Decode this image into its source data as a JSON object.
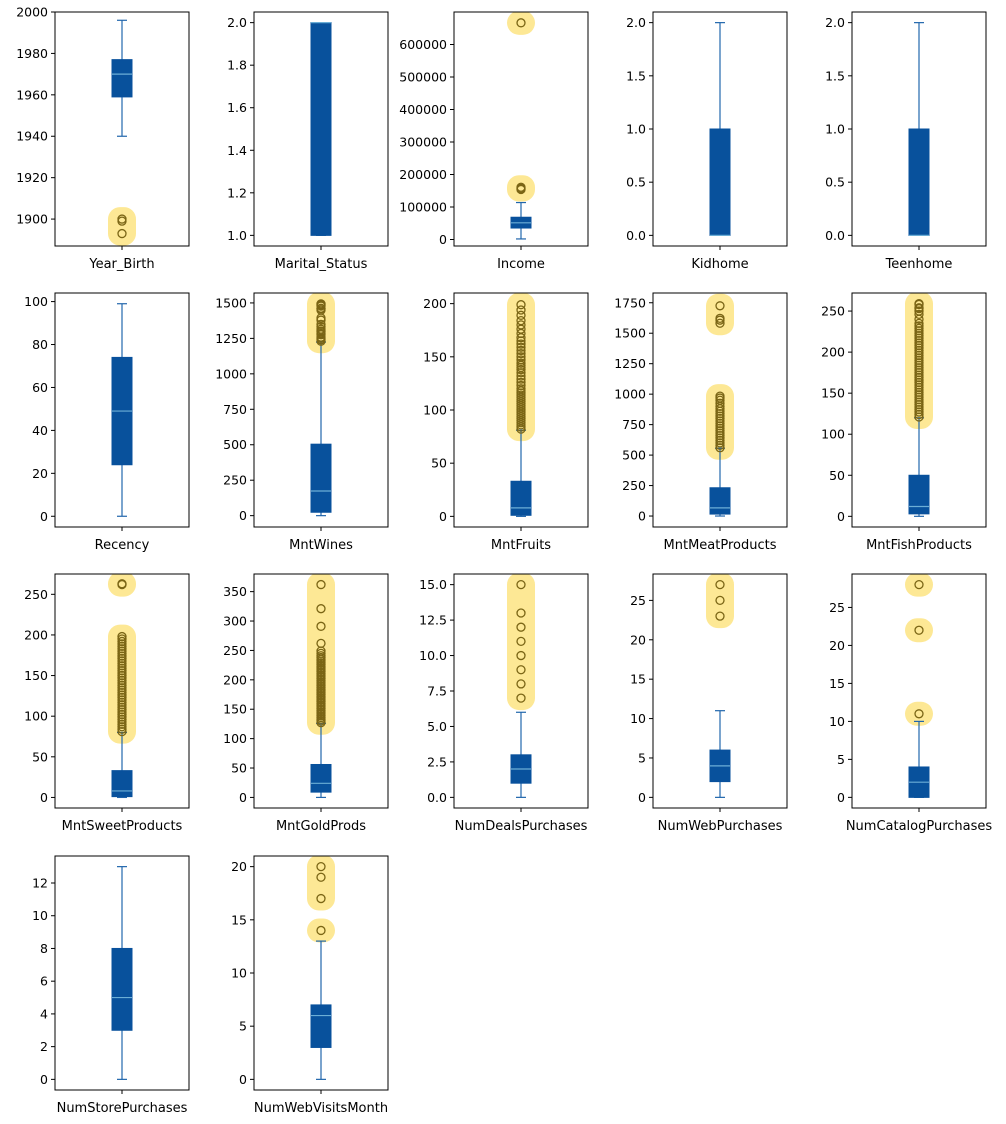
{
  "chart_data": [
    {
      "type": "box",
      "category": "Year_Birth",
      "yticks": [
        1900,
        1920,
        1940,
        1960,
        1980,
        2000
      ],
      "ylim": [
        1887,
        2000
      ],
      "box": {
        "whisker_low": 1940,
        "q1": 1959,
        "median": 1970,
        "q3": 1977,
        "whisker_high": 1996
      },
      "outliers": [
        1893,
        1899,
        1900
      ],
      "highlighted_outliers": [
        1893,
        1899,
        1900
      ]
    },
    {
      "type": "box",
      "category": "Marital_Status",
      "yticks": [
        1.0,
        1.2,
        1.4,
        1.6,
        1.8,
        2.0
      ],
      "ylim": [
        0.95,
        2.05
      ],
      "box": {
        "whisker_low": 1.0,
        "q1": 1.0,
        "median": 2.0,
        "q3": 2.0,
        "whisker_high": 2.0
      },
      "outliers": [],
      "highlighted_outliers": []
    },
    {
      "type": "box",
      "category": "Income",
      "yticks": [
        0,
        100000,
        200000,
        300000,
        400000,
        500000,
        600000
      ],
      "ylim": [
        -20000,
        700000
      ],
      "box": {
        "whisker_low": 1730,
        "q1": 35300,
        "median": 51400,
        "q3": 68500,
        "whisker_high": 113700
      },
      "outliers": [
        153900,
        157100,
        160800,
        666666
      ],
      "highlighted_outliers": [
        153900,
        157100,
        160800,
        666666
      ]
    },
    {
      "type": "box",
      "category": "Kidhome",
      "yticks": [
        0.0,
        0.5,
        1.0,
        1.5,
        2.0
      ],
      "ylim": [
        -0.1,
        2.1
      ],
      "box": {
        "whisker_low": 0,
        "q1": 0,
        "median": 0,
        "q3": 1,
        "whisker_high": 2
      },
      "outliers": [],
      "highlighted_outliers": []
    },
    {
      "type": "box",
      "category": "Teenhome",
      "yticks": [
        0.0,
        0.5,
        1.0,
        1.5,
        2.0
      ],
      "ylim": [
        -0.1,
        2.1
      ],
      "box": {
        "whisker_low": 0,
        "q1": 0,
        "median": 0,
        "q3": 1,
        "whisker_high": 2
      },
      "outliers": [],
      "highlighted_outliers": []
    },
    {
      "type": "box",
      "category": "Recency",
      "yticks": [
        0,
        20,
        40,
        60,
        80,
        100
      ],
      "ylim": [
        -5,
        104
      ],
      "box": {
        "whisker_low": 0,
        "q1": 24,
        "median": 49,
        "q3": 74,
        "whisker_high": 99
      },
      "outliers": [],
      "highlighted_outliers": []
    },
    {
      "type": "box",
      "category": "MntWines",
      "yticks": [
        0,
        250,
        500,
        750,
        1000,
        1250,
        1500
      ],
      "ylim": [
        -80,
        1570
      ],
      "box": {
        "whisker_low": 0,
        "q1": 24,
        "median": 174,
        "q3": 504,
        "whisker_high": 1224
      },
      "outliers": [
        1230,
        1240,
        1250,
        1259,
        1276,
        1285,
        1296,
        1302,
        1315,
        1332,
        1349,
        1379,
        1394,
        1449,
        1459,
        1462,
        1478,
        1486,
        1492,
        1493
      ],
      "highlighted_outliers": [
        1230,
        1240,
        1250,
        1259,
        1276,
        1285,
        1296,
        1302,
        1315,
        1332,
        1349,
        1379,
        1394,
        1449,
        1459,
        1462,
        1478,
        1486,
        1492,
        1493
      ]
    },
    {
      "type": "box",
      "category": "MntFruits",
      "yticks": [
        0,
        50,
        100,
        150,
        200
      ],
      "ylim": [
        -10,
        210
      ],
      "box": {
        "whisker_low": 0,
        "q1": 1,
        "median": 8,
        "q3": 33,
        "whisker_high": 81
      },
      "outliers": [
        82,
        84,
        86,
        88,
        90,
        92,
        94,
        96,
        98,
        100,
        102,
        104,
        106,
        108,
        110,
        112,
        114,
        116,
        118,
        120,
        123,
        126,
        129,
        132,
        135,
        138,
        140,
        142,
        144,
        147,
        150,
        153,
        156,
        159,
        162,
        165,
        168,
        172,
        176,
        180,
        184,
        189,
        194,
        199
      ],
      "highlighted_outliers": [
        82,
        84,
        86,
        88,
        90,
        92,
        94,
        96,
        98,
        100,
        102,
        104,
        106,
        108,
        110,
        112,
        114,
        116,
        118,
        120,
        123,
        126,
        129,
        132,
        135,
        138,
        140,
        142,
        144,
        147,
        150,
        153,
        156,
        159,
        162,
        165,
        168,
        172,
        176,
        180,
        184,
        189,
        194,
        199
      ]
    },
    {
      "type": "box",
      "category": "MntMeatProducts",
      "yticks": [
        0,
        250,
        500,
        750,
        1000,
        1250,
        1500,
        1750
      ],
      "ylim": [
        -90,
        1830
      ],
      "box": {
        "whisker_low": 0,
        "q1": 16,
        "median": 67,
        "q3": 232,
        "whisker_high": 556
      },
      "outliers": [
        560,
        580,
        600,
        620,
        640,
        660,
        680,
        700,
        720,
        740,
        760,
        780,
        800,
        820,
        840,
        860,
        880,
        900,
        925,
        950,
        968,
        984,
        1582,
        1607,
        1622,
        1725
      ],
      "highlighted_outliers": [
        560,
        580,
        600,
        620,
        640,
        660,
        680,
        700,
        720,
        740,
        760,
        780,
        800,
        820,
        840,
        860,
        880,
        900,
        925,
        950,
        968,
        984,
        1582,
        1607,
        1622,
        1725
      ]
    },
    {
      "type": "box",
      "category": "MntFishProducts",
      "yticks": [
        0,
        50,
        100,
        150,
        200,
        250
      ],
      "ylim": [
        -13,
        272
      ],
      "box": {
        "whisker_low": 0,
        "q1": 3,
        "median": 12,
        "q3": 50,
        "whisker_high": 120
      },
      "outliers": [
        121,
        124,
        127,
        130,
        133,
        136,
        139,
        142,
        145,
        148,
        151,
        154,
        157,
        160,
        163,
        166,
        169,
        172,
        175,
        178,
        181,
        184,
        187,
        190,
        193,
        196,
        199,
        202,
        205,
        208,
        211,
        214,
        217,
        220,
        223,
        226,
        229,
        232,
        235,
        240,
        246,
        250,
        253,
        254,
        258,
        259
      ],
      "highlighted_outliers": [
        121,
        124,
        127,
        130,
        133,
        136,
        139,
        142,
        145,
        148,
        151,
        154,
        157,
        160,
        163,
        166,
        169,
        172,
        175,
        178,
        181,
        184,
        187,
        190,
        193,
        196,
        199,
        202,
        205,
        208,
        211,
        214,
        217,
        220,
        223,
        226,
        229,
        232,
        235,
        240,
        246,
        250,
        253,
        254,
        258,
        259
      ]
    },
    {
      "type": "box",
      "category": "MntSweetProducts",
      "yticks": [
        0,
        50,
        100,
        150,
        200,
        250
      ],
      "ylim": [
        -13,
        275
      ],
      "box": {
        "whisker_low": 0,
        "q1": 1,
        "median": 8,
        "q3": 33,
        "whisker_high": 80
      },
      "outliers": [
        81,
        84,
        87,
        90,
        93,
        96,
        99,
        102,
        105,
        108,
        111,
        114,
        117,
        120,
        123,
        126,
        129,
        132,
        135,
        138,
        141,
        144,
        147,
        150,
        153,
        156,
        159,
        162,
        165,
        168,
        171,
        174,
        177,
        180,
        183,
        186,
        189,
        192,
        195,
        198,
        262,
        263
      ],
      "highlighted_outliers": [
        81,
        84,
        87,
        90,
        93,
        96,
        99,
        102,
        105,
        108,
        111,
        114,
        117,
        120,
        123,
        126,
        129,
        132,
        135,
        138,
        141,
        144,
        147,
        150,
        153,
        156,
        159,
        162,
        165,
        168,
        171,
        174,
        177,
        180,
        183,
        186,
        189,
        192,
        195,
        198,
        262,
        263
      ]
    },
    {
      "type": "box",
      "category": "MntGoldProds",
      "yticks": [
        0,
        50,
        100,
        150,
        200,
        250,
        300,
        350
      ],
      "ylim": [
        -18,
        380
      ],
      "box": {
        "whisker_low": 0,
        "q1": 9,
        "median": 24,
        "q3": 56,
        "whisker_high": 126
      },
      "outliers": [
        127,
        130,
        133,
        136,
        139,
        142,
        145,
        148,
        151,
        154,
        157,
        160,
        163,
        166,
        169,
        172,
        175,
        178,
        181,
        184,
        187,
        190,
        193,
        196,
        199,
        202,
        205,
        208,
        211,
        214,
        217,
        220,
        223,
        226,
        229,
        232,
        235,
        238,
        241,
        245,
        249,
        262,
        291,
        321,
        362
      ],
      "highlighted_outliers": [
        127,
        130,
        133,
        136,
        139,
        142,
        145,
        148,
        151,
        154,
        157,
        160,
        163,
        166,
        169,
        172,
        175,
        178,
        181,
        184,
        187,
        190,
        193,
        196,
        199,
        202,
        205,
        208,
        211,
        214,
        217,
        220,
        223,
        226,
        229,
        232,
        235,
        238,
        241,
        245,
        249,
        262,
        291,
        321,
        362
      ]
    },
    {
      "type": "box",
      "category": "NumDealsPurchases",
      "yticks": [
        0.0,
        2.5,
        5.0,
        7.5,
        10.0,
        12.5,
        15.0
      ],
      "ylim": [
        -0.75,
        15.75
      ],
      "box": {
        "whisker_low": 0,
        "q1": 1,
        "median": 2,
        "q3": 3,
        "whisker_high": 6
      },
      "outliers": [
        7,
        8,
        9,
        10,
        11,
        12,
        13,
        15
      ],
      "highlighted_outliers": [
        7,
        8,
        9,
        10,
        11,
        12,
        13,
        15
      ]
    },
    {
      "type": "box",
      "category": "NumWebPurchases",
      "yticks": [
        0,
        5,
        10,
        15,
        20,
        25
      ],
      "ylim": [
        -1.35,
        28.35
      ],
      "box": {
        "whisker_low": 0,
        "q1": 2,
        "median": 4,
        "q3": 6,
        "whisker_high": 11
      },
      "outliers": [
        23,
        25,
        27
      ],
      "highlighted_outliers": [
        23,
        25,
        27
      ]
    },
    {
      "type": "box",
      "category": "NumCatalogPurchases",
      "yticks": [
        0,
        5,
        10,
        15,
        20,
        25
      ],
      "ylim": [
        -1.4,
        29.4
      ],
      "box": {
        "whisker_low": 0,
        "q1": 0,
        "median": 2,
        "q3": 4,
        "whisker_high": 10
      },
      "outliers": [
        11,
        22,
        28
      ],
      "highlighted_outliers": [
        11,
        22,
        28
      ]
    },
    {
      "type": "box",
      "category": "NumStorePurchases",
      "yticks": [
        0,
        2,
        4,
        6,
        8,
        10,
        12
      ],
      "ylim": [
        -0.65,
        13.65
      ],
      "box": {
        "whisker_low": 0,
        "q1": 3,
        "median": 5,
        "q3": 8,
        "whisker_high": 13
      },
      "outliers": [],
      "highlighted_outliers": []
    },
    {
      "type": "box",
      "category": "NumWebVisitsMonth",
      "yticks": [
        0,
        5,
        10,
        15,
        20
      ],
      "ylim": [
        -1,
        21
      ],
      "box": {
        "whisker_low": 0,
        "q1": 3,
        "median": 6,
        "q3": 7,
        "whisker_high": 13
      },
      "outliers": [
        14,
        17,
        19,
        20
      ],
      "highlighted_outliers": [
        14,
        17,
        19,
        20
      ]
    }
  ],
  "colors": {
    "box_fill": "#08519c",
    "box_edge": "#08519c",
    "median_line": "#6baed6",
    "whisker": "#2166ac",
    "outlier_edge": "#7a6515",
    "highlight": "#fde58a",
    "axis": "#000000"
  }
}
